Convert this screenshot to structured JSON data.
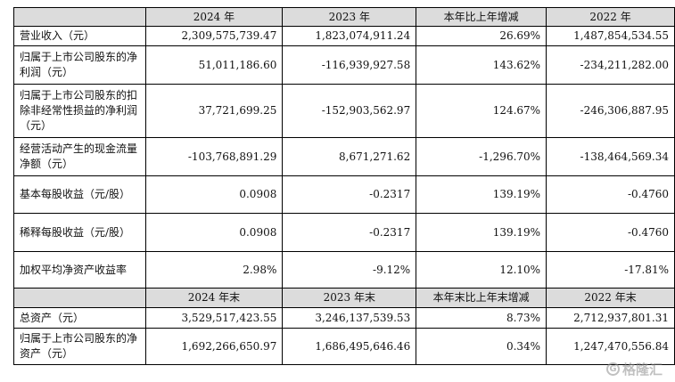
{
  "header1": [
    "",
    "2024 年",
    "2023 年",
    "本年比上年增减",
    "2022 年"
  ],
  "rows1": [
    {
      "label": "营业收入（元）",
      "v2024": "2,309,575,739.47",
      "v2023": "1,823,074,911.24",
      "change": "26.69%",
      "v2022": "1,487,854,534.55"
    },
    {
      "label": "归属于上市公司股东的净利润（元）",
      "v2024": "51,011,186.60",
      "v2023": "-116,939,927.58",
      "change": "143.62%",
      "v2022": "-234,211,282.00"
    },
    {
      "label": "归属于上市公司股东的扣除非经常性损益的净利润（元）",
      "v2024": "37,721,699.25",
      "v2023": "-152,903,562.97",
      "change": "124.67%",
      "v2022": "-246,306,887.95"
    },
    {
      "label": "经营活动产生的现金流量净额（元）",
      "v2024": "-103,768,891.29",
      "v2023": "8,671,271.62",
      "change": "-1,296.70%",
      "v2022": "-138,464,569.34"
    },
    {
      "label": "基本每股收益（元/股）",
      "v2024": "0.0908",
      "v2023": "-0.2317",
      "change": "139.19%",
      "v2022": "-0.4760"
    },
    {
      "label": "稀释每股收益（元/股）",
      "v2024": "0.0908",
      "v2023": "-0.2317",
      "change": "139.19%",
      "v2022": "-0.4760"
    },
    {
      "label": "加权平均净资产收益率",
      "v2024": "2.98%",
      "v2023": "-9.12%",
      "change": "12.10%",
      "v2022": "-17.81%"
    }
  ],
  "header2": [
    "",
    "2024 年末",
    "2023 年末",
    "本年末比上年末增减",
    "2022 年末"
  ],
  "rows2": [
    {
      "label": "总资产（元）",
      "v2024": "3,529,517,423.55",
      "v2023": "3,246,137,539.53",
      "change": "8.73%",
      "v2022": "2,712,937,801.31"
    },
    {
      "label": "归属于上市公司股东的净资产（元）",
      "v2024": "1,692,266,650.97",
      "v2023": "1,686,495,646.46",
      "change": "0.34%",
      "v2022": "1,247,470,556.84"
    }
  ],
  "watermark": {
    "text": "格隆汇",
    "icon": "gelonghui-logo-icon"
  }
}
